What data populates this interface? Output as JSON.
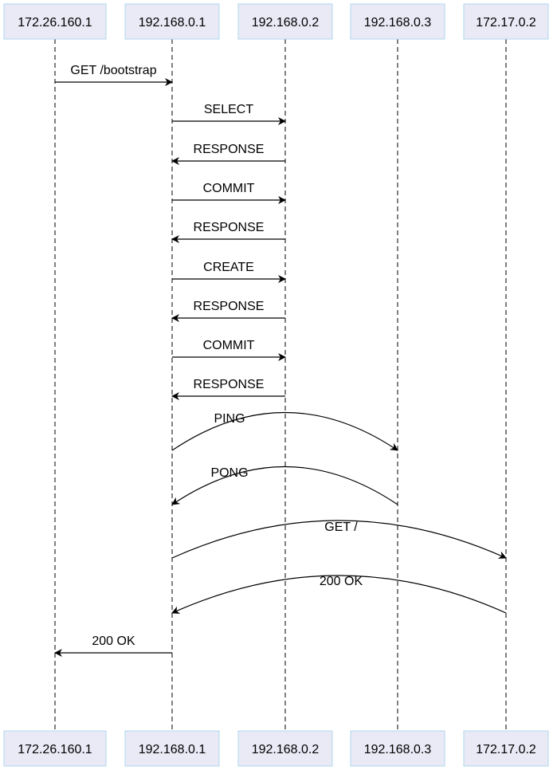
{
  "actors": [
    {
      "id": "a1",
      "label": "172.26.160.1"
    },
    {
      "id": "a2",
      "label": "192.168.0.1"
    },
    {
      "id": "a3",
      "label": "192.168.0.2"
    },
    {
      "id": "a4",
      "label": "192.168.0.3"
    },
    {
      "id": "a5",
      "label": "172.17.0.2"
    }
  ],
  "messages": [
    {
      "from": "a1",
      "to": "a2",
      "label": "GET /bootstrap"
    },
    {
      "from": "a2",
      "to": "a3",
      "label": "SELECT"
    },
    {
      "from": "a3",
      "to": "a2",
      "label": "RESPONSE"
    },
    {
      "from": "a2",
      "to": "a3",
      "label": "COMMIT"
    },
    {
      "from": "a3",
      "to": "a2",
      "label": "RESPONSE"
    },
    {
      "from": "a2",
      "to": "a3",
      "label": "CREATE"
    },
    {
      "from": "a3",
      "to": "a2",
      "label": "RESPONSE"
    },
    {
      "from": "a2",
      "to": "a3",
      "label": "COMMIT"
    },
    {
      "from": "a3",
      "to": "a2",
      "label": "RESPONSE"
    },
    {
      "from": "a2",
      "to": "a4",
      "label": "PING"
    },
    {
      "from": "a4",
      "to": "a2",
      "label": "PONG"
    },
    {
      "from": "a2",
      "to": "a5",
      "label": "GET /"
    },
    {
      "from": "a5",
      "to": "a2",
      "label": "200 OK"
    },
    {
      "from": "a2",
      "to": "a1",
      "label": "200 OK"
    }
  ]
}
